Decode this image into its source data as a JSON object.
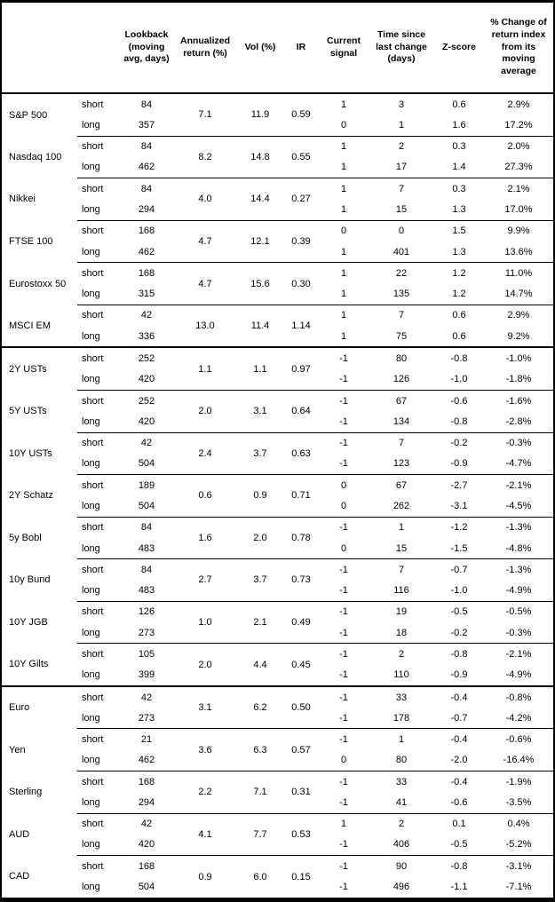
{
  "colors": {
    "background": "#ffffff",
    "border": "#000000",
    "text": "#000000"
  },
  "table": {
    "headers": [
      "Lookback\n(moving\navg, days)",
      "Annualized\nreturn (%)",
      "Vol (%)",
      "IR",
      "Current\nsignal",
      "Time since\nlast change\n(days)",
      "Z-score",
      "% Change of\nreturn index\nfrom its\nmoving\naverage"
    ],
    "sections": [
      {
        "assets": [
          {
            "name": "S&P 500",
            "annualized_return": "7.1",
            "vol": "11.9",
            "ir": "0.59",
            "rows": [
              {
                "position": "short",
                "lookback": "84",
                "signal": "1",
                "time_since": "3",
                "z_score": "0.6",
                "pct_change": "2.9%"
              },
              {
                "position": "long",
                "lookback": "357",
                "signal": "0",
                "time_since": "1",
                "z_score": "1.6",
                "pct_change": "17.2%"
              }
            ]
          },
          {
            "name": "Nasdaq 100",
            "annualized_return": "8.2",
            "vol": "14.8",
            "ir": "0.55",
            "rows": [
              {
                "position": "short",
                "lookback": "84",
                "signal": "1",
                "time_since": "2",
                "z_score": "0.3",
                "pct_change": "2.0%"
              },
              {
                "position": "long",
                "lookback": "462",
                "signal": "1",
                "time_since": "17",
                "z_score": "1.4",
                "pct_change": "27.3%"
              }
            ]
          },
          {
            "name": "Nikkei",
            "annualized_return": "4.0",
            "vol": "14.4",
            "ir": "0.27",
            "rows": [
              {
                "position": "short",
                "lookback": "84",
                "signal": "1",
                "time_since": "7",
                "z_score": "0.3",
                "pct_change": "2.1%"
              },
              {
                "position": "long",
                "lookback": "294",
                "signal": "1",
                "time_since": "15",
                "z_score": "1.3",
                "pct_change": "17.0%"
              }
            ]
          },
          {
            "name": "FTSE 100",
            "annualized_return": "4.7",
            "vol": "12.1",
            "ir": "0.39",
            "rows": [
              {
                "position": "short",
                "lookback": "168",
                "signal": "0",
                "time_since": "0",
                "z_score": "1.5",
                "pct_change": "9.9%"
              },
              {
                "position": "long",
                "lookback": "462",
                "signal": "1",
                "time_since": "401",
                "z_score": "1.3",
                "pct_change": "13.6%"
              }
            ]
          },
          {
            "name": "Eurostoxx 50",
            "annualized_return": "4.7",
            "vol": "15.6",
            "ir": "0.30",
            "rows": [
              {
                "position": "short",
                "lookback": "168",
                "signal": "1",
                "time_since": "22",
                "z_score": "1.2",
                "pct_change": "11.0%"
              },
              {
                "position": "long",
                "lookback": "315",
                "signal": "1",
                "time_since": "135",
                "z_score": "1.2",
                "pct_change": "14.7%"
              }
            ]
          },
          {
            "name": "MSCI EM",
            "annualized_return": "13.0",
            "vol": "11.4",
            "ir": "1.14",
            "rows": [
              {
                "position": "short",
                "lookback": "42",
                "signal": "1",
                "time_since": "7",
                "z_score": "0.6",
                "pct_change": "2.9%"
              },
              {
                "position": "long",
                "lookback": "336",
                "signal": "1",
                "time_since": "75",
                "z_score": "0.6",
                "pct_change": "9.2%"
              }
            ]
          }
        ]
      },
      {
        "assets": [
          {
            "name": "2Y USTs",
            "annualized_return": "1.1",
            "vol": "1.1",
            "ir": "0.97",
            "rows": [
              {
                "position": "short",
                "lookback": "252",
                "signal": "-1",
                "time_since": "80",
                "z_score": "-0.8",
                "pct_change": "-1.0%"
              },
              {
                "position": "long",
                "lookback": "420",
                "signal": "-1",
                "time_since": "126",
                "z_score": "-1.0",
                "pct_change": "-1.8%"
              }
            ]
          },
          {
            "name": "5Y USTs",
            "annualized_return": "2.0",
            "vol": "3.1",
            "ir": "0.64",
            "rows": [
              {
                "position": "short",
                "lookback": "252",
                "signal": "-1",
                "time_since": "67",
                "z_score": "-0.6",
                "pct_change": "-1.6%"
              },
              {
                "position": "long",
                "lookback": "420",
                "signal": "-1",
                "time_since": "134",
                "z_score": "-0.8",
                "pct_change": "-2.8%"
              }
            ]
          },
          {
            "name": "10Y USTs",
            "annualized_return": "2.4",
            "vol": "3.7",
            "ir": "0.63",
            "rows": [
              {
                "position": "short",
                "lookback": "42",
                "signal": "-1",
                "time_since": "7",
                "z_score": "-0.2",
                "pct_change": "-0.3%"
              },
              {
                "position": "long",
                "lookback": "504",
                "signal": "-1",
                "time_since": "123",
                "z_score": "-0.9",
                "pct_change": "-4.7%"
              }
            ]
          },
          {
            "name": "2Y Schatz",
            "annualized_return": "0.6",
            "vol": "0.9",
            "ir": "0.71",
            "rows": [
              {
                "position": "short",
                "lookback": "189",
                "signal": "0",
                "time_since": "67",
                "z_score": "-2.7",
                "pct_change": "-2.1%"
              },
              {
                "position": "long",
                "lookback": "504",
                "signal": "0",
                "time_since": "262",
                "z_score": "-3.1",
                "pct_change": "-4.5%"
              }
            ]
          },
          {
            "name": "5y Bobl",
            "annualized_return": "1.6",
            "vol": "2.0",
            "ir": "0.78",
            "rows": [
              {
                "position": "short",
                "lookback": "84",
                "signal": "-1",
                "time_since": "1",
                "z_score": "-1.2",
                "pct_change": "-1.3%"
              },
              {
                "position": "long",
                "lookback": "483",
                "signal": "0",
                "time_since": "15",
                "z_score": "-1.5",
                "pct_change": "-4.8%"
              }
            ]
          },
          {
            "name": "10y Bund",
            "annualized_return": "2.7",
            "vol": "3.7",
            "ir": "0.73",
            "rows": [
              {
                "position": "short",
                "lookback": "84",
                "signal": "-1",
                "time_since": "7",
                "z_score": "-0.7",
                "pct_change": "-1.3%"
              },
              {
                "position": "long",
                "lookback": "483",
                "signal": "-1",
                "time_since": "116",
                "z_score": "-1.0",
                "pct_change": "-4.9%"
              }
            ]
          },
          {
            "name": "10Y JGB",
            "annualized_return": "1.0",
            "vol": "2.1",
            "ir": "0.49",
            "rows": [
              {
                "position": "short",
                "lookback": "126",
                "signal": "-1",
                "time_since": "19",
                "z_score": "-0.5",
                "pct_change": "-0.5%"
              },
              {
                "position": "long",
                "lookback": "273",
                "signal": "-1",
                "time_since": "18",
                "z_score": "-0.2",
                "pct_change": "-0.3%"
              }
            ]
          },
          {
            "name": "10Y Gilts",
            "annualized_return": "2.0",
            "vol": "4.4",
            "ir": "0.45",
            "rows": [
              {
                "position": "short",
                "lookback": "105",
                "signal": "-1",
                "time_since": "2",
                "z_score": "-0.8",
                "pct_change": "-2.1%"
              },
              {
                "position": "long",
                "lookback": "399",
                "signal": "-1",
                "time_since": "110",
                "z_score": "-0.9",
                "pct_change": "-4.9%"
              }
            ]
          }
        ]
      },
      {
        "assets": [
          {
            "name": "Euro",
            "annualized_return": "3.1",
            "vol": "6.2",
            "ir": "0.50",
            "rows": [
              {
                "position": "short",
                "lookback": "42",
                "signal": "-1",
                "time_since": "33",
                "z_score": "-0.4",
                "pct_change": "-0.8%"
              },
              {
                "position": "long",
                "lookback": "273",
                "signal": "-1",
                "time_since": "178",
                "z_score": "-0.7",
                "pct_change": "-4.2%"
              }
            ]
          },
          {
            "name": "Yen",
            "annualized_return": "3.6",
            "vol": "6.3",
            "ir": "0.57",
            "rows": [
              {
                "position": "short",
                "lookback": "21",
                "signal": "-1",
                "time_since": "1",
                "z_score": "-0.4",
                "pct_change": "-0.6%"
              },
              {
                "position": "long",
                "lookback": "462",
                "signal": "0",
                "time_since": "80",
                "z_score": "-2.0",
                "pct_change": "-16.4%"
              }
            ]
          },
          {
            "name": "Sterling",
            "annualized_return": "2.2",
            "vol": "7.1",
            "ir": "0.31",
            "rows": [
              {
                "position": "short",
                "lookback": "168",
                "signal": "-1",
                "time_since": "33",
                "z_score": "-0.4",
                "pct_change": "-1.9%"
              },
              {
                "position": "long",
                "lookback": "294",
                "signal": "-1",
                "time_since": "41",
                "z_score": "-0.6",
                "pct_change": "-3.5%"
              }
            ]
          },
          {
            "name": "AUD",
            "annualized_return": "4.1",
            "vol": "7.7",
            "ir": "0.53",
            "rows": [
              {
                "position": "short",
                "lookback": "42",
                "signal": "1",
                "time_since": "2",
                "z_score": "0.1",
                "pct_change": "0.4%"
              },
              {
                "position": "long",
                "lookback": "420",
                "signal": "-1",
                "time_since": "406",
                "z_score": "-0.5",
                "pct_change": "-5.2%"
              }
            ]
          },
          {
            "name": "CAD",
            "annualized_return": "0.9",
            "vol": "6.0",
            "ir": "0.15",
            "rows": [
              {
                "position": "short",
                "lookback": "168",
                "signal": "-1",
                "time_since": "90",
                "z_score": "-0.8",
                "pct_change": "-3.1%"
              },
              {
                "position": "long",
                "lookback": "504",
                "signal": "-1",
                "time_since": "496",
                "z_score": "-1.1",
                "pct_change": "-7.1%"
              }
            ]
          }
        ]
      }
    ]
  }
}
